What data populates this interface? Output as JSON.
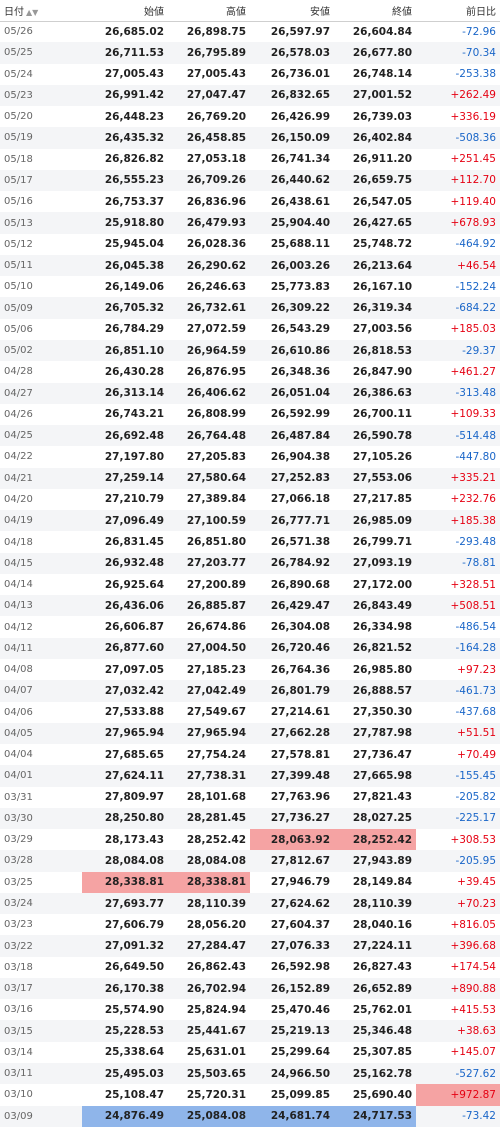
{
  "headers": {
    "date": "日付",
    "open": "始値",
    "high": "高値",
    "low": "安値",
    "close": "終値",
    "change": "前日比"
  },
  "sort_icons": "▲▼",
  "colors": {
    "up": "#e50012",
    "down": "#1a66c8",
    "highlight_high": "#f5a3a3",
    "highlight_low": "#8fb5ea"
  },
  "rows": [
    {
      "date": "05/26",
      "open": "26,685.02",
      "high": "26,898.75",
      "low": "26,597.97",
      "close": "26,604.84",
      "change": "-72.96"
    },
    {
      "date": "05/25",
      "open": "26,711.53",
      "high": "26,795.89",
      "low": "26,578.03",
      "close": "26,677.80",
      "change": "-70.34"
    },
    {
      "date": "05/24",
      "open": "27,005.43",
      "high": "27,005.43",
      "low": "26,736.01",
      "close": "26,748.14",
      "change": "-253.38"
    },
    {
      "date": "05/23",
      "open": "26,991.42",
      "high": "27,047.47",
      "low": "26,832.65",
      "close": "27,001.52",
      "change": "+262.49"
    },
    {
      "date": "05/20",
      "open": "26,448.23",
      "high": "26,769.20",
      "low": "26,426.99",
      "close": "26,739.03",
      "change": "+336.19"
    },
    {
      "date": "05/19",
      "open": "26,435.32",
      "high": "26,458.85",
      "low": "26,150.09",
      "close": "26,402.84",
      "change": "-508.36"
    },
    {
      "date": "05/18",
      "open": "26,826.82",
      "high": "27,053.18",
      "low": "26,741.34",
      "close": "26,911.20",
      "change": "+251.45"
    },
    {
      "date": "05/17",
      "open": "26,555.23",
      "high": "26,709.26",
      "low": "26,440.62",
      "close": "26,659.75",
      "change": "+112.70"
    },
    {
      "date": "05/16",
      "open": "26,753.37",
      "high": "26,836.96",
      "low": "26,438.61",
      "close": "26,547.05",
      "change": "+119.40"
    },
    {
      "date": "05/13",
      "open": "25,918.80",
      "high": "26,479.93",
      "low": "25,904.40",
      "close": "26,427.65",
      "change": "+678.93"
    },
    {
      "date": "05/12",
      "open": "25,945.04",
      "high": "26,028.36",
      "low": "25,688.11",
      "close": "25,748.72",
      "change": "-464.92"
    },
    {
      "date": "05/11",
      "open": "26,045.38",
      "high": "26,290.62",
      "low": "26,003.26",
      "close": "26,213.64",
      "change": "+46.54"
    },
    {
      "date": "05/10",
      "open": "26,149.06",
      "high": "26,246.63",
      "low": "25,773.83",
      "close": "26,167.10",
      "change": "-152.24"
    },
    {
      "date": "05/09",
      "open": "26,705.32",
      "high": "26,732.61",
      "low": "26,309.22",
      "close": "26,319.34",
      "change": "-684.22"
    },
    {
      "date": "05/06",
      "open": "26,784.29",
      "high": "27,072.59",
      "low": "26,543.29",
      "close": "27,003.56",
      "change": "+185.03"
    },
    {
      "date": "05/02",
      "open": "26,851.10",
      "high": "26,964.59",
      "low": "26,610.86",
      "close": "26,818.53",
      "change": "-29.37"
    },
    {
      "date": "04/28",
      "open": "26,430.28",
      "high": "26,876.95",
      "low": "26,348.36",
      "close": "26,847.90",
      "change": "+461.27"
    },
    {
      "date": "04/27",
      "open": "26,313.14",
      "high": "26,406.62",
      "low": "26,051.04",
      "close": "26,386.63",
      "change": "-313.48"
    },
    {
      "date": "04/26",
      "open": "26,743.21",
      "high": "26,808.99",
      "low": "26,592.99",
      "close": "26,700.11",
      "change": "+109.33"
    },
    {
      "date": "04/25",
      "open": "26,692.48",
      "high": "26,764.48",
      "low": "26,487.84",
      "close": "26,590.78",
      "change": "-514.48"
    },
    {
      "date": "04/22",
      "open": "27,197.80",
      "high": "27,205.83",
      "low": "26,904.38",
      "close": "27,105.26",
      "change": "-447.80"
    },
    {
      "date": "04/21",
      "open": "27,259.14",
      "high": "27,580.64",
      "low": "27,252.83",
      "close": "27,553.06",
      "change": "+335.21"
    },
    {
      "date": "04/20",
      "open": "27,210.79",
      "high": "27,389.84",
      "low": "27,066.18",
      "close": "27,217.85",
      "change": "+232.76"
    },
    {
      "date": "04/19",
      "open": "27,096.49",
      "high": "27,100.59",
      "low": "26,777.71",
      "close": "26,985.09",
      "change": "+185.38"
    },
    {
      "date": "04/18",
      "open": "26,831.45",
      "high": "26,851.80",
      "low": "26,571.38",
      "close": "26,799.71",
      "change": "-293.48"
    },
    {
      "date": "04/15",
      "open": "26,932.48",
      "high": "27,203.77",
      "low": "26,784.92",
      "close": "27,093.19",
      "change": "-78.81"
    },
    {
      "date": "04/14",
      "open": "26,925.64",
      "high": "27,200.89",
      "low": "26,890.68",
      "close": "27,172.00",
      "change": "+328.51"
    },
    {
      "date": "04/13",
      "open": "26,436.06",
      "high": "26,885.87",
      "low": "26,429.47",
      "close": "26,843.49",
      "change": "+508.51"
    },
    {
      "date": "04/12",
      "open": "26,606.87",
      "high": "26,674.86",
      "low": "26,304.08",
      "close": "26,334.98",
      "change": "-486.54"
    },
    {
      "date": "04/11",
      "open": "26,877.60",
      "high": "27,004.50",
      "low": "26,720.46",
      "close": "26,821.52",
      "change": "-164.28"
    },
    {
      "date": "04/08",
      "open": "27,097.05",
      "high": "27,185.23",
      "low": "26,764.36",
      "close": "26,985.80",
      "change": "+97.23"
    },
    {
      "date": "04/07",
      "open": "27,032.42",
      "high": "27,042.49",
      "low": "26,801.79",
      "close": "26,888.57",
      "change": "-461.73"
    },
    {
      "date": "04/06",
      "open": "27,533.88",
      "high": "27,549.67",
      "low": "27,214.61",
      "close": "27,350.30",
      "change": "-437.68"
    },
    {
      "date": "04/05",
      "open": "27,965.94",
      "high": "27,965.94",
      "low": "27,662.28",
      "close": "27,787.98",
      "change": "+51.51"
    },
    {
      "date": "04/04",
      "open": "27,685.65",
      "high": "27,754.24",
      "low": "27,578.81",
      "close": "27,736.47",
      "change": "+70.49"
    },
    {
      "date": "04/01",
      "open": "27,624.11",
      "high": "27,738.31",
      "low": "27,399.48",
      "close": "27,665.98",
      "change": "-155.45"
    },
    {
      "date": "03/31",
      "open": "27,809.97",
      "high": "28,101.68",
      "low": "27,763.96",
      "close": "27,821.43",
      "change": "-205.82"
    },
    {
      "date": "03/30",
      "open": "28,250.80",
      "high": "28,281.45",
      "low": "27,736.27",
      "close": "28,027.25",
      "change": "-225.17"
    },
    {
      "date": "03/29",
      "open": "28,173.43",
      "high": "28,252.42",
      "low": "28,063.92",
      "close": "28,252.42",
      "change": "+308.53",
      "hl": {
        "low": "hl-red",
        "close": "hl-red"
      }
    },
    {
      "date": "03/28",
      "open": "28,084.08",
      "high": "28,084.08",
      "low": "27,812.67",
      "close": "27,943.89",
      "change": "-205.95"
    },
    {
      "date": "03/25",
      "open": "28,338.81",
      "high": "28,338.81",
      "low": "27,946.79",
      "close": "28,149.84",
      "change": "+39.45",
      "hl": {
        "open": "hl-red",
        "high": "hl-red"
      }
    },
    {
      "date": "03/24",
      "open": "27,693.77",
      "high": "28,110.39",
      "low": "27,624.62",
      "close": "28,110.39",
      "change": "+70.23"
    },
    {
      "date": "03/23",
      "open": "27,606.79",
      "high": "28,056.20",
      "low": "27,604.37",
      "close": "28,040.16",
      "change": "+816.05"
    },
    {
      "date": "03/22",
      "open": "27,091.32",
      "high": "27,284.47",
      "low": "27,076.33",
      "close": "27,224.11",
      "change": "+396.68"
    },
    {
      "date": "03/18",
      "open": "26,649.50",
      "high": "26,862.43",
      "low": "26,592.98",
      "close": "26,827.43",
      "change": "+174.54"
    },
    {
      "date": "03/17",
      "open": "26,170.38",
      "high": "26,702.94",
      "low": "26,152.89",
      "close": "26,652.89",
      "change": "+890.88"
    },
    {
      "date": "03/16",
      "open": "25,574.90",
      "high": "25,824.94",
      "low": "25,470.46",
      "close": "25,762.01",
      "change": "+415.53"
    },
    {
      "date": "03/15",
      "open": "25,228.53",
      "high": "25,441.67",
      "low": "25,219.13",
      "close": "25,346.48",
      "change": "+38.63"
    },
    {
      "date": "03/14",
      "open": "25,338.64",
      "high": "25,631.01",
      "low": "25,299.64",
      "close": "25,307.85",
      "change": "+145.07"
    },
    {
      "date": "03/11",
      "open": "25,495.03",
      "high": "25,503.65",
      "low": "24,966.50",
      "close": "25,162.78",
      "change": "-527.62"
    },
    {
      "date": "03/10",
      "open": "25,108.47",
      "high": "25,720.31",
      "low": "25,099.85",
      "close": "25,690.40",
      "change": "+972.87",
      "hl": {
        "change": "hl-red"
      }
    },
    {
      "date": "03/09",
      "open": "24,876.49",
      "high": "25,084.08",
      "low": "24,681.74",
      "close": "24,717.53",
      "change": "-73.42",
      "hl": {
        "open": "hl-blue",
        "high": "hl-blue",
        "low": "hl-blue",
        "close": "hl-blue"
      }
    }
  ]
}
